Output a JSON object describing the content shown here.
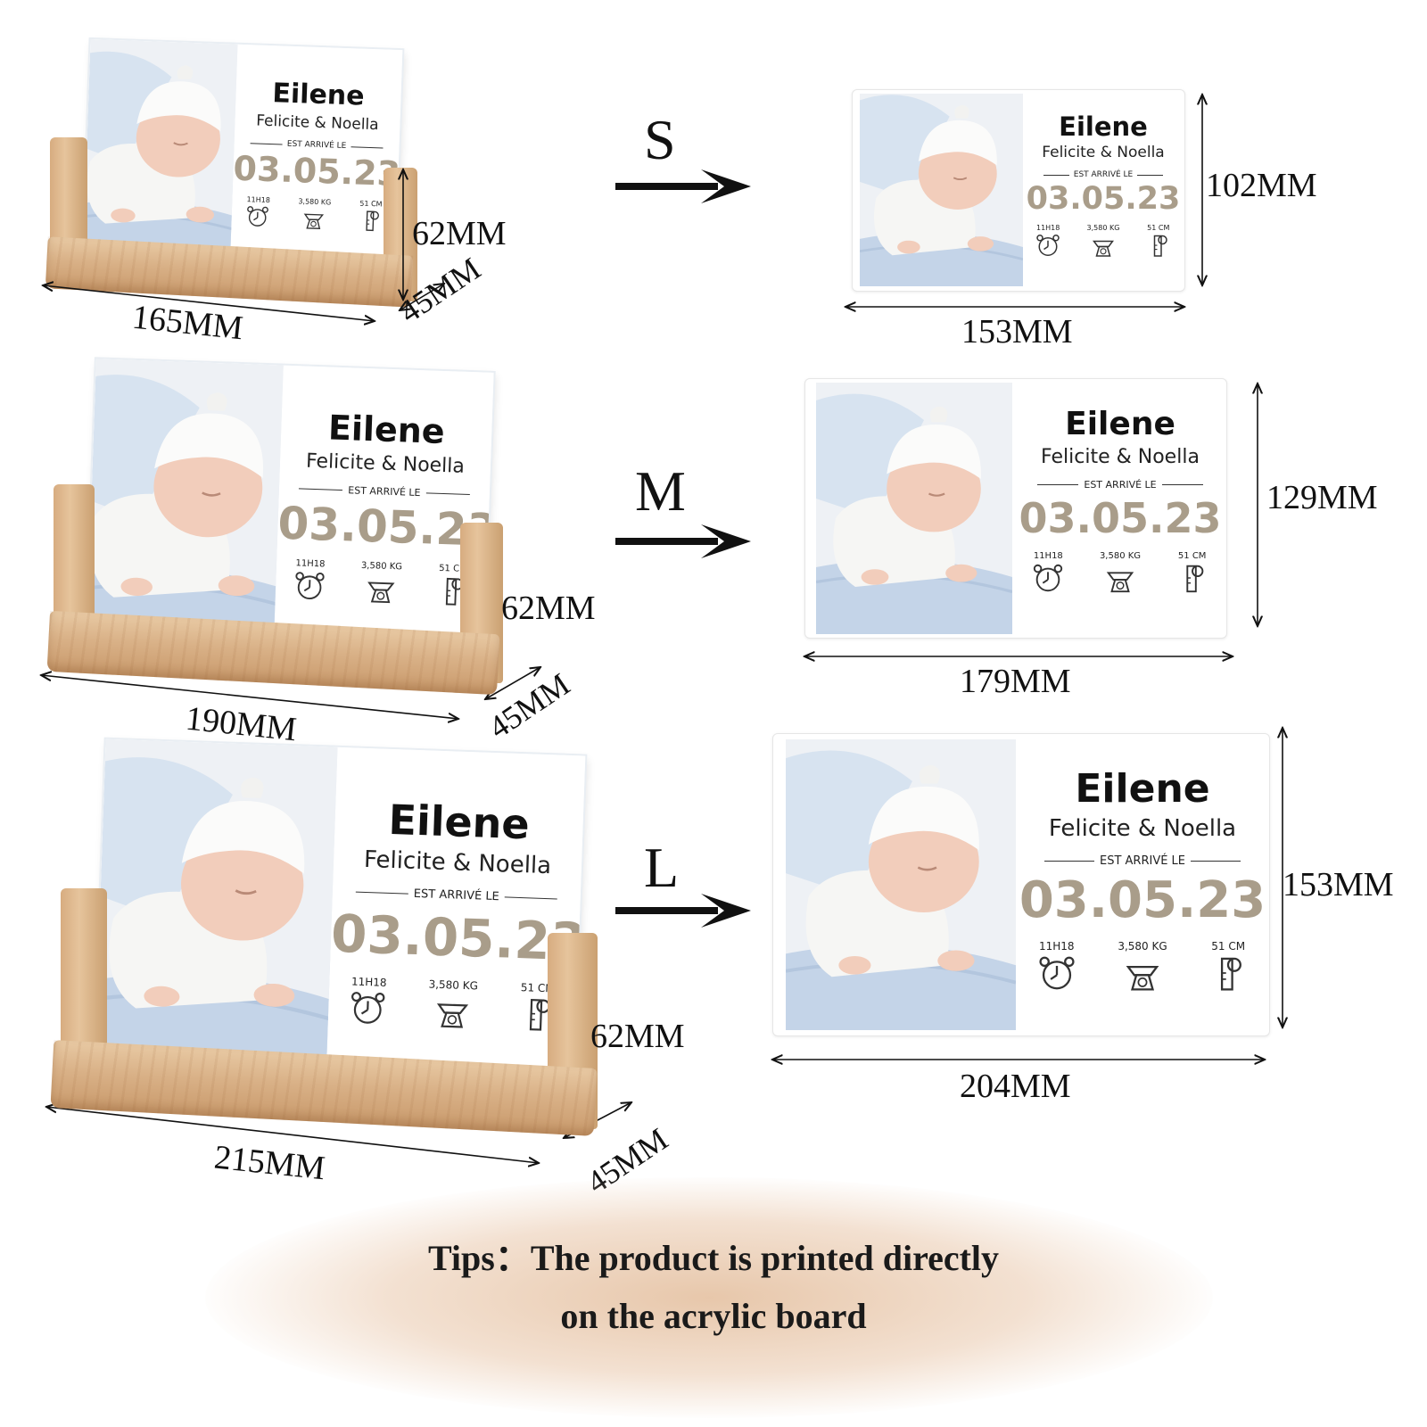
{
  "card": {
    "name": "Eilene",
    "parents": "Felicite & Noella",
    "arrived_label": "EST ARRIVÉ LE",
    "date": "03.05.23",
    "stats": [
      {
        "value": "11H18",
        "icon": "alarm-clock-icon"
      },
      {
        "value": "3,580 KG",
        "icon": "scale-icon"
      },
      {
        "value": "51 CM",
        "icon": "measuring-tape-icon"
      }
    ]
  },
  "sizes": [
    {
      "letter": "S",
      "stand_width": "165MM",
      "stand_height": "62MM",
      "stand_depth": "45MM",
      "board_width": "153MM",
      "board_height": "102MM"
    },
    {
      "letter": "M",
      "stand_width": "190MM",
      "stand_height": "62MM",
      "stand_depth": "45MM",
      "board_width": "179MM",
      "board_height": "129MM"
    },
    {
      "letter": "L",
      "stand_width": "215MM",
      "stand_height": "62MM",
      "stand_depth": "45MM",
      "board_width": "204MM",
      "board_height": "153MM"
    }
  ],
  "tips": {
    "line1": "Tips：The product is printed directly",
    "line2": "on the acrylic board"
  },
  "colors": {
    "date": "#a99d8a",
    "wood": "#d9b187"
  }
}
